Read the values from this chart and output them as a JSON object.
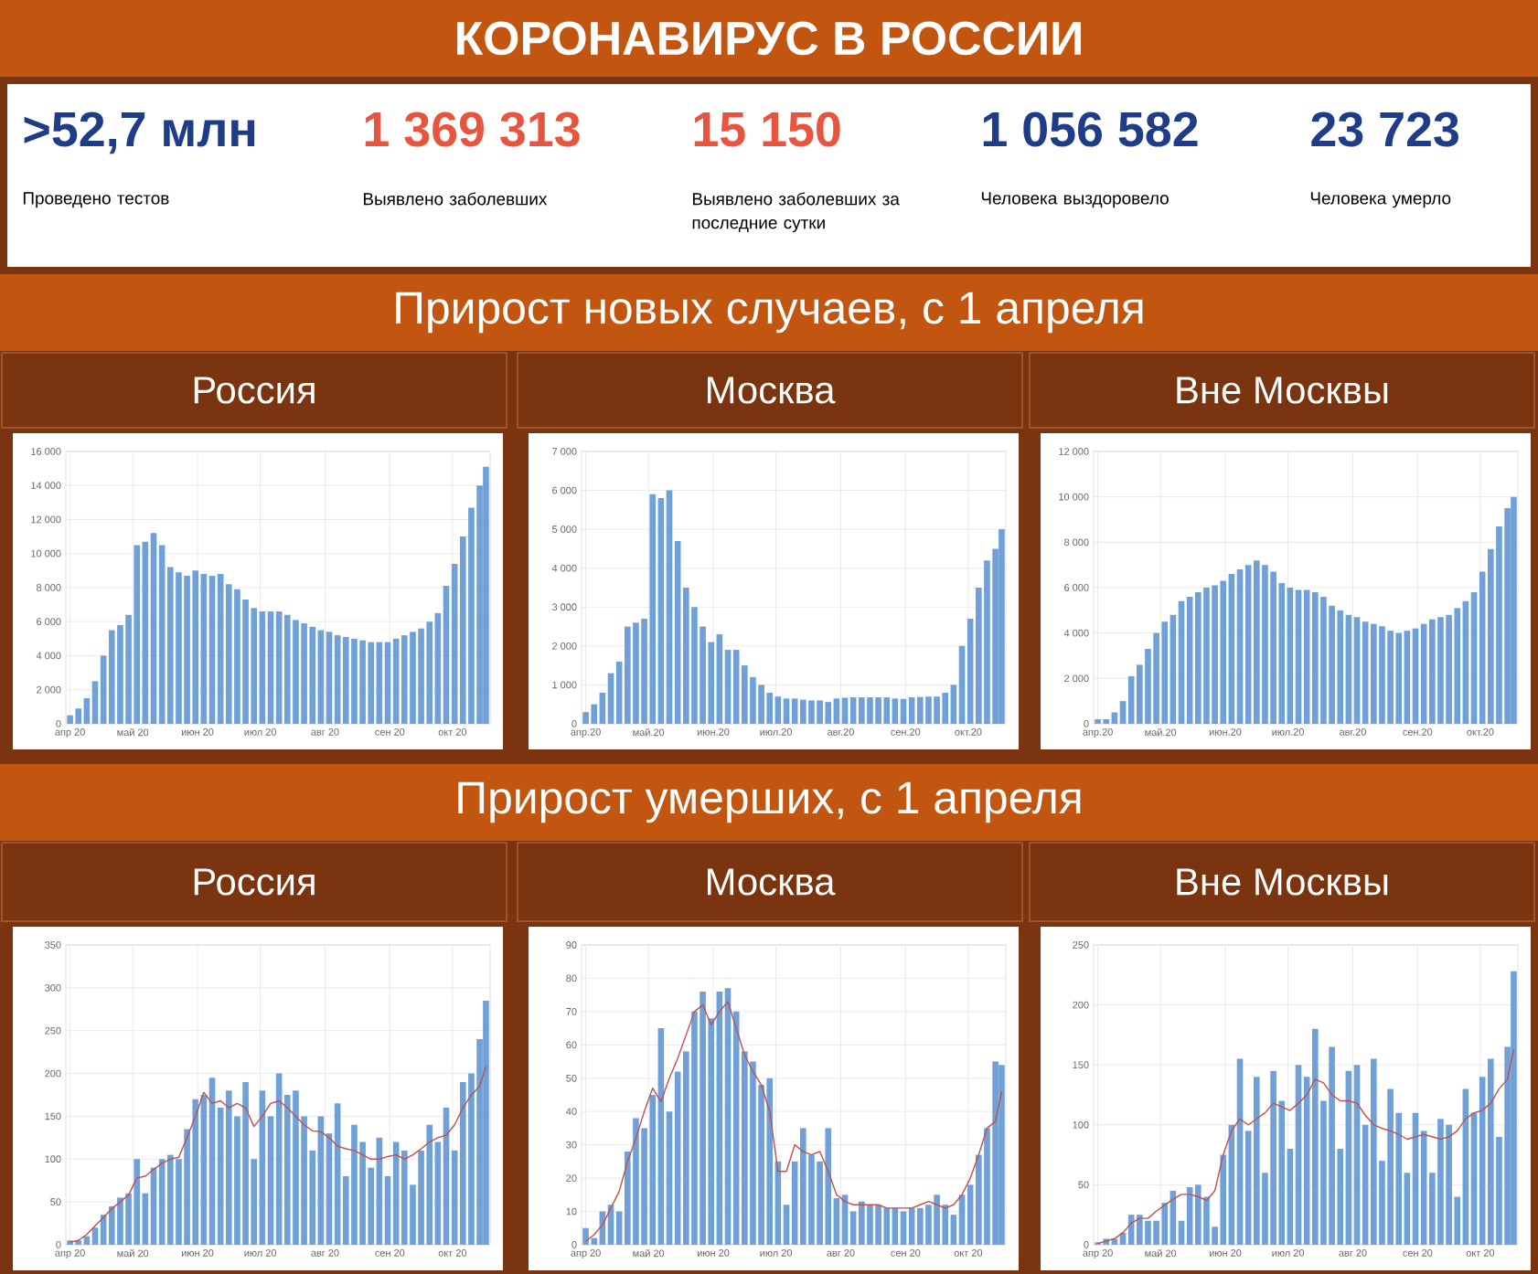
{
  "chart_data": [
    {
      "type": "other",
      "title": "КОРОНАВИРУС В РОССИИ",
      "annotations": [
        ">52,7 млн",
        "Проведено тестов",
        "1 369 313",
        "Выявлено заболевших",
        "15 150",
        "Выявлено заболевших за последние сутки",
        "1 056 582",
        "Человека выздоровело",
        "23 723",
        "Человека умерло"
      ],
      "colors": [
        "#1f3c88",
        "#e8553e",
        "#e8553e",
        "#1f3c88",
        "#1f3c88"
      ]
    },
    {
      "type": "other",
      "title": "Прирост новых случаев, с 1 апреля"
    },
    {
      "type": "bar",
      "title": "Россия",
      "grid": true,
      "color": "#6fa0d8",
      "x": [
        "2020-04-01",
        "2020-04-05",
        "2020-04-09",
        "2020-04-13",
        "2020-04-17",
        "2020-04-21",
        "2020-04-25",
        "2020-04-29",
        "2020-05-03",
        "2020-05-07",
        "2020-05-11",
        "2020-05-15",
        "2020-05-19",
        "2020-05-23",
        "2020-05-27",
        "2020-05-31",
        "2020-06-04",
        "2020-06-08",
        "2020-06-12",
        "2020-06-16",
        "2020-06-20",
        "2020-06-24",
        "2020-06-28",
        "2020-07-02",
        "2020-07-06",
        "2020-07-10",
        "2020-07-14",
        "2020-07-18",
        "2020-07-22",
        "2020-07-26",
        "2020-07-30",
        "2020-08-03",
        "2020-08-07",
        "2020-08-11",
        "2020-08-15",
        "2020-08-19",
        "2020-08-23",
        "2020-08-27",
        "2020-08-31",
        "2020-09-04",
        "2020-09-08",
        "2020-09-12",
        "2020-09-16",
        "2020-09-20",
        "2020-09-24",
        "2020-09-28",
        "2020-10-02",
        "2020-10-06",
        "2020-10-10",
        "2020-10-14",
        "2020-10-17"
      ],
      "values": [
        500,
        900,
        1500,
        2500,
        4000,
        5500,
        5800,
        6400,
        10500,
        10700,
        11200,
        10500,
        9200,
        8900,
        8700,
        9000,
        8800,
        8700,
        8800,
        8200,
        7900,
        7300,
        6800,
        6600,
        6600,
        6600,
        6400,
        6100,
        5900,
        5700,
        5500,
        5400,
        5200,
        5100,
        5000,
        4900,
        4800,
        4800,
        4800,
        5000,
        5200,
        5400,
        5600,
        6000,
        6500,
        8100,
        9400,
        11000,
        12700,
        14000,
        15100
      ],
      "xlim": [
        "2020-03-30",
        "2020-10-19"
      ],
      "ylim": [
        0,
        16000
      ],
      "xticks": [
        {
          "value": "2020-04-01",
          "label": "апр 20"
        },
        {
          "value": "2020-05-01",
          "label": "май 20"
        },
        {
          "value": "2020-06-01",
          "label": "июн 20"
        },
        {
          "value": "2020-07-01",
          "label": "июл 20"
        },
        {
          "value": "2020-08-01",
          "label": "авг 20"
        },
        {
          "value": "2020-09-01",
          "label": "сен 20"
        },
        {
          "value": "2020-10-01",
          "label": "окт 20"
        }
      ],
      "yticks": [
        0,
        {
          "value": 2000,
          "label": "2 000"
        },
        {
          "value": 4000,
          "label": "4 000"
        },
        {
          "value": 6000,
          "label": "6 000"
        },
        {
          "value": 8000,
          "label": "8 000"
        },
        {
          "value": 10000,
          "label": "10 000"
        },
        {
          "value": 12000,
          "label": "12 000"
        },
        {
          "value": 14000,
          "label": "14 000"
        },
        {
          "value": 16000,
          "label": "16 000"
        }
      ]
    },
    {
      "type": "bar",
      "title": "Москва",
      "grid": true,
      "color": "#6fa0d8",
      "x": [
        "2020-04-01",
        "2020-04-05",
        "2020-04-09",
        "2020-04-13",
        "2020-04-17",
        "2020-04-21",
        "2020-04-25",
        "2020-04-29",
        "2020-05-03",
        "2020-05-07",
        "2020-05-11",
        "2020-05-15",
        "2020-05-19",
        "2020-05-23",
        "2020-05-27",
        "2020-05-31",
        "2020-06-04",
        "2020-06-08",
        "2020-06-12",
        "2020-06-16",
        "2020-06-20",
        "2020-06-24",
        "2020-06-28",
        "2020-07-02",
        "2020-07-06",
        "2020-07-10",
        "2020-07-14",
        "2020-07-18",
        "2020-07-22",
        "2020-07-26",
        "2020-07-30",
        "2020-08-03",
        "2020-08-07",
        "2020-08-11",
        "2020-08-15",
        "2020-08-19",
        "2020-08-23",
        "2020-08-27",
        "2020-08-31",
        "2020-09-04",
        "2020-09-08",
        "2020-09-12",
        "2020-09-16",
        "2020-09-20",
        "2020-09-24",
        "2020-09-28",
        "2020-10-02",
        "2020-10-06",
        "2020-10-10",
        "2020-10-14",
        "2020-10-17"
      ],
      "values": [
        300,
        500,
        800,
        1300,
        1600,
        2500,
        2600,
        2700,
        5900,
        5800,
        6000,
        4700,
        3500,
        3000,
        2500,
        2100,
        2300,
        1900,
        1900,
        1500,
        1200,
        1000,
        800,
        700,
        650,
        650,
        620,
        600,
        600,
        560,
        650,
        670,
        680,
        680,
        680,
        680,
        680,
        650,
        640,
        680,
        690,
        700,
        700,
        800,
        1000,
        2000,
        2700,
        3500,
        4200,
        4500,
        5000
      ],
      "xlim": [
        "2020-03-30",
        "2020-10-19"
      ],
      "ylim": [
        0,
        7000
      ],
      "xticks": [
        {
          "value": "2020-04-01",
          "label": "апр.20"
        },
        {
          "value": "2020-05-01",
          "label": "май.20"
        },
        {
          "value": "2020-06-01",
          "label": "июн.20"
        },
        {
          "value": "2020-07-01",
          "label": "июл.20"
        },
        {
          "value": "2020-08-01",
          "label": "авг.20"
        },
        {
          "value": "2020-09-01",
          "label": "сен.20"
        },
        {
          "value": "2020-10-01",
          "label": "окт.20"
        }
      ],
      "yticks": [
        0,
        {
          "value": 1000,
          "label": "1 000"
        },
        {
          "value": 2000,
          "label": "2 000"
        },
        {
          "value": 3000,
          "label": "3 000"
        },
        {
          "value": 4000,
          "label": "4 000"
        },
        {
          "value": 5000,
          "label": "5 000"
        },
        {
          "value": 6000,
          "label": "6 000"
        },
        {
          "value": 7000,
          "label": "7 000"
        }
      ]
    },
    {
      "type": "bar",
      "title": "Вне Москвы",
      "grid": true,
      "color": "#6fa0d8",
      "x": [
        "2020-04-01",
        "2020-04-05",
        "2020-04-09",
        "2020-04-13",
        "2020-04-17",
        "2020-04-21",
        "2020-04-25",
        "2020-04-29",
        "2020-05-03",
        "2020-05-07",
        "2020-05-11",
        "2020-05-15",
        "2020-05-19",
        "2020-05-23",
        "2020-05-27",
        "2020-05-31",
        "2020-06-04",
        "2020-06-08",
        "2020-06-12",
        "2020-06-16",
        "2020-06-20",
        "2020-06-24",
        "2020-06-28",
        "2020-07-02",
        "2020-07-06",
        "2020-07-10",
        "2020-07-14",
        "2020-07-18",
        "2020-07-22",
        "2020-07-26",
        "2020-07-30",
        "2020-08-03",
        "2020-08-07",
        "2020-08-11",
        "2020-08-15",
        "2020-08-19",
        "2020-08-23",
        "2020-08-27",
        "2020-08-31",
        "2020-09-04",
        "2020-09-08",
        "2020-09-12",
        "2020-09-16",
        "2020-09-20",
        "2020-09-24",
        "2020-09-28",
        "2020-10-02",
        "2020-10-06",
        "2020-10-10",
        "2020-10-14",
        "2020-10-17"
      ],
      "values": [
        200,
        200,
        500,
        1000,
        2100,
        2600,
        3300,
        4000,
        4500,
        4800,
        5400,
        5600,
        5800,
        6000,
        6100,
        6300,
        6600,
        6800,
        7000,
        7200,
        7000,
        6700,
        6200,
        6000,
        5900,
        5900,
        5800,
        5600,
        5200,
        5000,
        4800,
        4700,
        4500,
        4400,
        4300,
        4100,
        4000,
        4100,
        4200,
        4400,
        4600,
        4700,
        4800,
        5100,
        5400,
        5800,
        6700,
        7700,
        8700,
        9500,
        10000
      ],
      "xlim": [
        "2020-03-30",
        "2020-10-19"
      ],
      "ylim": [
        0,
        12000
      ],
      "xticks": [
        {
          "value": "2020-04-01",
          "label": "апр.20"
        },
        {
          "value": "2020-05-01",
          "label": "май.20"
        },
        {
          "value": "2020-06-01",
          "label": "июн.20"
        },
        {
          "value": "2020-07-01",
          "label": "июл.20"
        },
        {
          "value": "2020-08-01",
          "label": "авг.20"
        },
        {
          "value": "2020-09-01",
          "label": "сен.20"
        },
        {
          "value": "2020-10-01",
          "label": "окт.20"
        }
      ],
      "yticks": [
        0,
        {
          "value": 2000,
          "label": "2 000"
        },
        {
          "value": 4000,
          "label": "4 000"
        },
        {
          "value": 6000,
          "label": "6 000"
        },
        {
          "value": 8000,
          "label": "8 000"
        },
        {
          "value": 10000,
          "label": "10 000"
        },
        {
          "value": 12000,
          "label": "12 000"
        }
      ]
    },
    {
      "type": "other",
      "title": "Прирост умерших, с 1 апреля"
    },
    {
      "type": "bar",
      "title": "Россия",
      "grid": true,
      "x": [
        "2020-04-01",
        "2020-04-05",
        "2020-04-09",
        "2020-04-13",
        "2020-04-17",
        "2020-04-21",
        "2020-04-25",
        "2020-04-29",
        "2020-05-03",
        "2020-05-07",
        "2020-05-11",
        "2020-05-15",
        "2020-05-19",
        "2020-05-23",
        "2020-05-27",
        "2020-05-31",
        "2020-06-04",
        "2020-06-08",
        "2020-06-12",
        "2020-06-16",
        "2020-06-20",
        "2020-06-24",
        "2020-06-28",
        "2020-07-02",
        "2020-07-06",
        "2020-07-10",
        "2020-07-14",
        "2020-07-18",
        "2020-07-22",
        "2020-07-26",
        "2020-07-30",
        "2020-08-03",
        "2020-08-07",
        "2020-08-11",
        "2020-08-15",
        "2020-08-19",
        "2020-08-23",
        "2020-08-27",
        "2020-08-31",
        "2020-09-04",
        "2020-09-08",
        "2020-09-12",
        "2020-09-16",
        "2020-09-20",
        "2020-09-24",
        "2020-09-28",
        "2020-10-02",
        "2020-10-06",
        "2020-10-10",
        "2020-10-14",
        "2020-10-17"
      ],
      "series": [
        {
          "type": "bar",
          "color": "#6fa0d8",
          "values": [
            5,
            5,
            10,
            20,
            35,
            45,
            55,
            60,
            100,
            60,
            90,
            100,
            105,
            100,
            135,
            170,
            175,
            195,
            160,
            180,
            150,
            190,
            100,
            180,
            150,
            200,
            175,
            180,
            150,
            110,
            150,
            130,
            165,
            80,
            140,
            120,
            90,
            125,
            80,
            120,
            110,
            70,
            110,
            140,
            120,
            160,
            110,
            190,
            200,
            240,
            285
          ]
        },
        {
          "type": "line",
          "color": "#c0504d",
          "values": [
            3,
            5,
            12,
            22,
            32,
            42,
            50,
            58,
            78,
            80,
            88,
            95,
            100,
            102,
            125,
            150,
            178,
            165,
            168,
            160,
            165,
            160,
            138,
            150,
            165,
            168,
            160,
            150,
            140,
            133,
            132,
            125,
            115,
            112,
            110,
            105,
            100,
            100,
            103,
            105,
            100,
            105,
            112,
            120,
            125,
            128,
            140,
            160,
            175,
            185,
            208
          ]
        }
      ],
      "xlim": [
        "2020-03-30",
        "2020-10-19"
      ],
      "ylim": [
        0,
        350
      ],
      "xticks": [
        {
          "value": "2020-04-01",
          "label": "апр 20"
        },
        {
          "value": "2020-05-01",
          "label": "май 20"
        },
        {
          "value": "2020-06-01",
          "label": "июн 20"
        },
        {
          "value": "2020-07-01",
          "label": "июл 20"
        },
        {
          "value": "2020-08-01",
          "label": "авг 20"
        },
        {
          "value": "2020-09-01",
          "label": "сен 20"
        },
        {
          "value": "2020-10-01",
          "label": "окт 20"
        }
      ],
      "yticks": [
        0,
        50,
        100,
        150,
        200,
        250,
        300,
        350
      ]
    },
    {
      "type": "bar",
      "title": "Москва",
      "grid": true,
      "x": [
        "2020-04-01",
        "2020-04-05",
        "2020-04-09",
        "2020-04-13",
        "2020-04-17",
        "2020-04-21",
        "2020-04-25",
        "2020-04-29",
        "2020-05-03",
        "2020-05-07",
        "2020-05-11",
        "2020-05-15",
        "2020-05-19",
        "2020-05-23",
        "2020-05-27",
        "2020-05-31",
        "2020-06-04",
        "2020-06-08",
        "2020-06-12",
        "2020-06-16",
        "2020-06-20",
        "2020-06-24",
        "2020-06-28",
        "2020-07-02",
        "2020-07-06",
        "2020-07-10",
        "2020-07-14",
        "2020-07-18",
        "2020-07-22",
        "2020-07-26",
        "2020-07-30",
        "2020-08-03",
        "2020-08-07",
        "2020-08-11",
        "2020-08-15",
        "2020-08-19",
        "2020-08-23",
        "2020-08-27",
        "2020-08-31",
        "2020-09-04",
        "2020-09-08",
        "2020-09-12",
        "2020-09-16",
        "2020-09-20",
        "2020-09-24",
        "2020-09-28",
        "2020-10-02",
        "2020-10-06",
        "2020-10-10",
        "2020-10-14",
        "2020-10-17"
      ],
      "series": [
        {
          "type": "bar",
          "color": "#6fa0d8",
          "values": [
            5,
            2,
            10,
            12,
            10,
            28,
            38,
            35,
            45,
            65,
            40,
            52,
            58,
            70,
            76,
            68,
            76,
            77,
            70,
            58,
            55,
            48,
            50,
            25,
            12,
            25,
            35,
            27,
            25,
            35,
            14,
            15,
            10,
            13,
            12,
            12,
            11,
            11,
            10,
            11,
            11,
            12,
            15,
            12,
            9,
            15,
            18,
            27,
            35,
            55,
            54
          ]
        },
        {
          "type": "line",
          "color": "#c0504d",
          "values": [
            1,
            3,
            6,
            11,
            16,
            25,
            32,
            40,
            47,
            43,
            50,
            56,
            63,
            70,
            72,
            66,
            70,
            73,
            65,
            57,
            52,
            48,
            40,
            22,
            22,
            30,
            28,
            27,
            28,
            22,
            15,
            13,
            12,
            12,
            12,
            12,
            11,
            11,
            11,
            11,
            12,
            13,
            12,
            11,
            12,
            15,
            20,
            27,
            35,
            37,
            46
          ]
        }
      ],
      "xlim": [
        "2020-03-30",
        "2020-10-19"
      ],
      "ylim": [
        0,
        90
      ],
      "xticks": [
        {
          "value": "2020-04-01",
          "label": "апр 20"
        },
        {
          "value": "2020-05-01",
          "label": "май 20"
        },
        {
          "value": "2020-06-01",
          "label": "июн 20"
        },
        {
          "value": "2020-07-01",
          "label": "июл 20"
        },
        {
          "value": "2020-08-01",
          "label": "авг 20"
        },
        {
          "value": "2020-09-01",
          "label": "сен 20"
        },
        {
          "value": "2020-10-01",
          "label": "окт 20"
        }
      ],
      "yticks": [
        0,
        10,
        20,
        30,
        40,
        50,
        60,
        70,
        80,
        90
      ]
    },
    {
      "type": "bar",
      "title": "Вне Москвы",
      "grid": true,
      "x": [
        "2020-04-01",
        "2020-04-05",
        "2020-04-09",
        "2020-04-13",
        "2020-04-17",
        "2020-04-21",
        "2020-04-25",
        "2020-04-29",
        "2020-05-03",
        "2020-05-07",
        "2020-05-11",
        "2020-05-15",
        "2020-05-19",
        "2020-05-23",
        "2020-05-27",
        "2020-05-31",
        "2020-06-04",
        "2020-06-08",
        "2020-06-12",
        "2020-06-16",
        "2020-06-20",
        "2020-06-24",
        "2020-06-28",
        "2020-07-02",
        "2020-07-06",
        "2020-07-10",
        "2020-07-14",
        "2020-07-18",
        "2020-07-22",
        "2020-07-26",
        "2020-07-30",
        "2020-08-03",
        "2020-08-07",
        "2020-08-11",
        "2020-08-15",
        "2020-08-19",
        "2020-08-23",
        "2020-08-27",
        "2020-08-31",
        "2020-09-04",
        "2020-09-08",
        "2020-09-12",
        "2020-09-16",
        "2020-09-20",
        "2020-09-24",
        "2020-09-28",
        "2020-10-02",
        "2020-10-06",
        "2020-10-10",
        "2020-10-14",
        "2020-10-17"
      ],
      "series": [
        {
          "type": "bar",
          "color": "#6fa0d8",
          "values": [
            2,
            5,
            5,
            10,
            25,
            25,
            20,
            20,
            35,
            45,
            20,
            48,
            50,
            40,
            15,
            75,
            100,
            155,
            95,
            140,
            60,
            145,
            120,
            80,
            150,
            140,
            180,
            120,
            165,
            80,
            145,
            150,
            100,
            155,
            70,
            130,
            110,
            60,
            110,
            95,
            60,
            105,
            100,
            40,
            130,
            110,
            140,
            155,
            90,
            165,
            228
          ]
        },
        {
          "type": "line",
          "color": "#c0504d",
          "values": [
            1,
            3,
            5,
            10,
            18,
            22,
            22,
            28,
            33,
            38,
            42,
            42,
            40,
            37,
            45,
            75,
            95,
            105,
            100,
            105,
            110,
            118,
            115,
            112,
            118,
            125,
            138,
            135,
            125,
            120,
            120,
            118,
            108,
            100,
            97,
            95,
            92,
            88,
            90,
            92,
            90,
            88,
            90,
            95,
            105,
            110,
            112,
            118,
            130,
            138,
            163
          ]
        }
      ],
      "xlim": [
        "2020-03-30",
        "2020-10-19"
      ],
      "ylim": [
        0,
        250
      ],
      "xticks": [
        {
          "value": "2020-04-01",
          "label": "апр 20"
        },
        {
          "value": "2020-05-01",
          "label": "май 20"
        },
        {
          "value": "2020-06-01",
          "label": "июн 20"
        },
        {
          "value": "2020-07-01",
          "label": "июл 20"
        },
        {
          "value": "2020-08-01",
          "label": "авг 20"
        },
        {
          "value": "2020-09-01",
          "label": "сен 20"
        },
        {
          "value": "2020-10-01",
          "label": "окт 20"
        }
      ],
      "yticks": [
        0,
        50,
        100,
        150,
        200,
        250
      ]
    }
  ]
}
